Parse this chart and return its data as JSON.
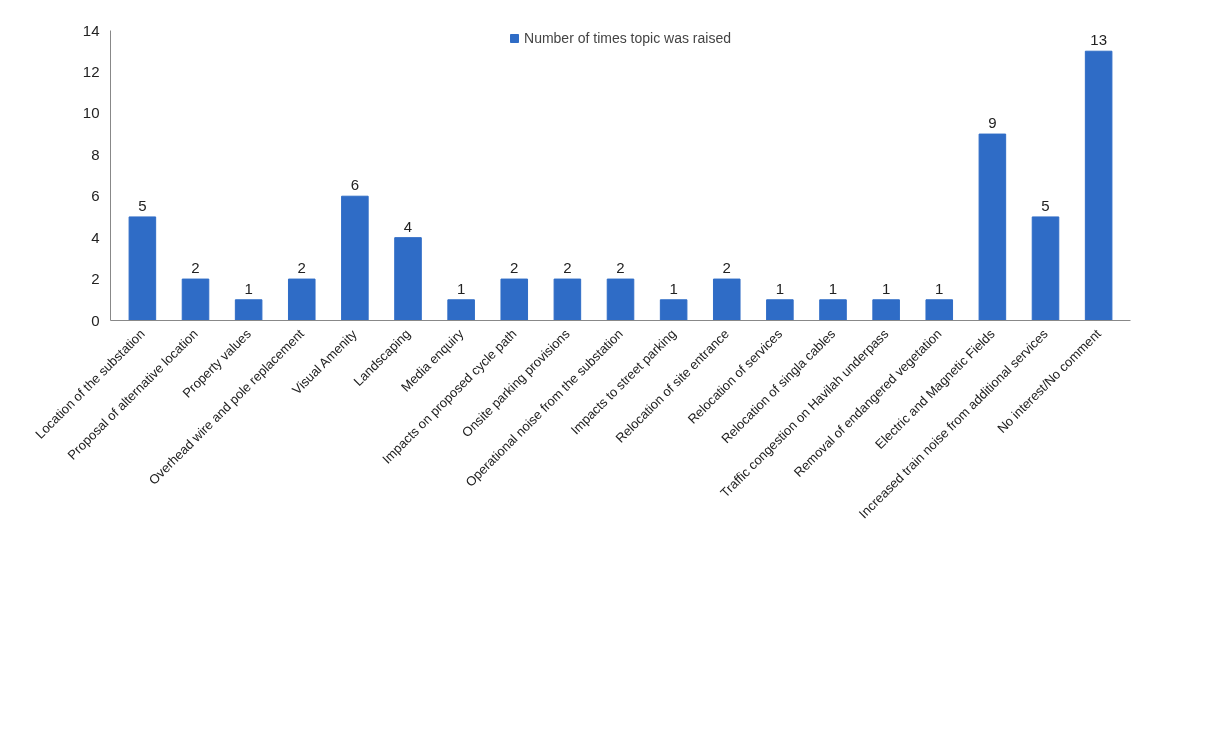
{
  "chart_data": {
    "type": "bar",
    "categories": [
      "Location of the substation",
      "Proposal of alternative location",
      "Property values",
      "Overhead wire and pole replacement",
      "Visual Amenity",
      "Landscaping",
      "Media enquiry",
      "Impacts on proposed cycle path",
      "Onsite parking provisions",
      "Operational noise from the substation",
      "Impacts to street parking",
      "Relocation of site entrance",
      "Relocation of services",
      "Relocation of singla cables",
      "Traffic congestion on Havilah underpass",
      "Removal of endangered vegetation",
      "Electric and Magnetic Fields",
      "Increased train noise from additional services",
      "No interest/No comment"
    ],
    "series": [
      {
        "name": "Number of times topic was raised",
        "color": "#2f6cc6",
        "values": [
          5,
          2,
          1,
          2,
          6,
          4,
          1,
          2,
          2,
          2,
          1,
          2,
          1,
          1,
          1,
          1,
          9,
          5,
          13
        ]
      }
    ],
    "ylim": [
      0,
      14
    ],
    "yticks": [
      0,
      2,
      4,
      6,
      8,
      10,
      12,
      14
    ],
    "data_labels": true,
    "grid": false,
    "legend": "top"
  }
}
